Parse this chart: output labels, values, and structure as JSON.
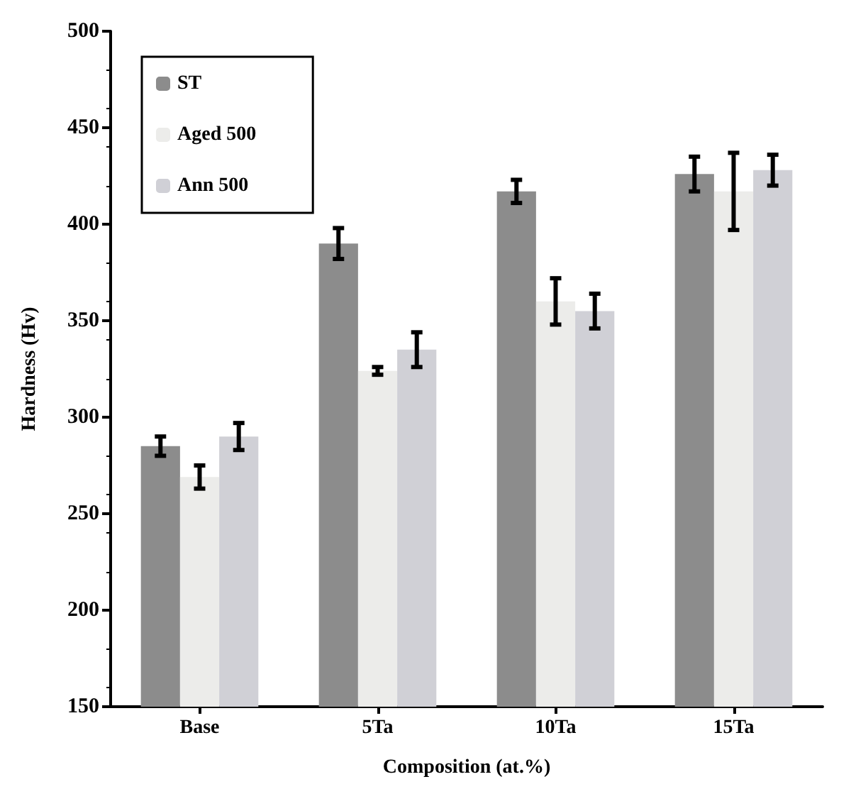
{
  "chart_data": {
    "type": "bar",
    "xlabel": "Composition (at.%)",
    "ylabel": "Hardness (Hv)",
    "categories": [
      "Base",
      "5Ta",
      "10Ta",
      "15Ta"
    ],
    "series": [
      {
        "name": "ST",
        "color": "#8c8c8c",
        "values": [
          285,
          390,
          417,
          426
        ],
        "errors": [
          5,
          8,
          6,
          9
        ]
      },
      {
        "name": "Aged 500",
        "color": "#ececea",
        "values": [
          269,
          324,
          360,
          417
        ],
        "errors": [
          6,
          2,
          12,
          20
        ]
      },
      {
        "name": "Ann 500",
        "color": "#d0d0d6",
        "values": [
          290,
          335,
          355,
          428
        ],
        "errors": [
          7,
          9,
          9,
          8
        ]
      }
    ],
    "ylim": [
      150,
      500
    ],
    "yticks": [
      150,
      200,
      250,
      300,
      350,
      400,
      450,
      500
    ],
    "grid": false,
    "legend": "top left"
  }
}
